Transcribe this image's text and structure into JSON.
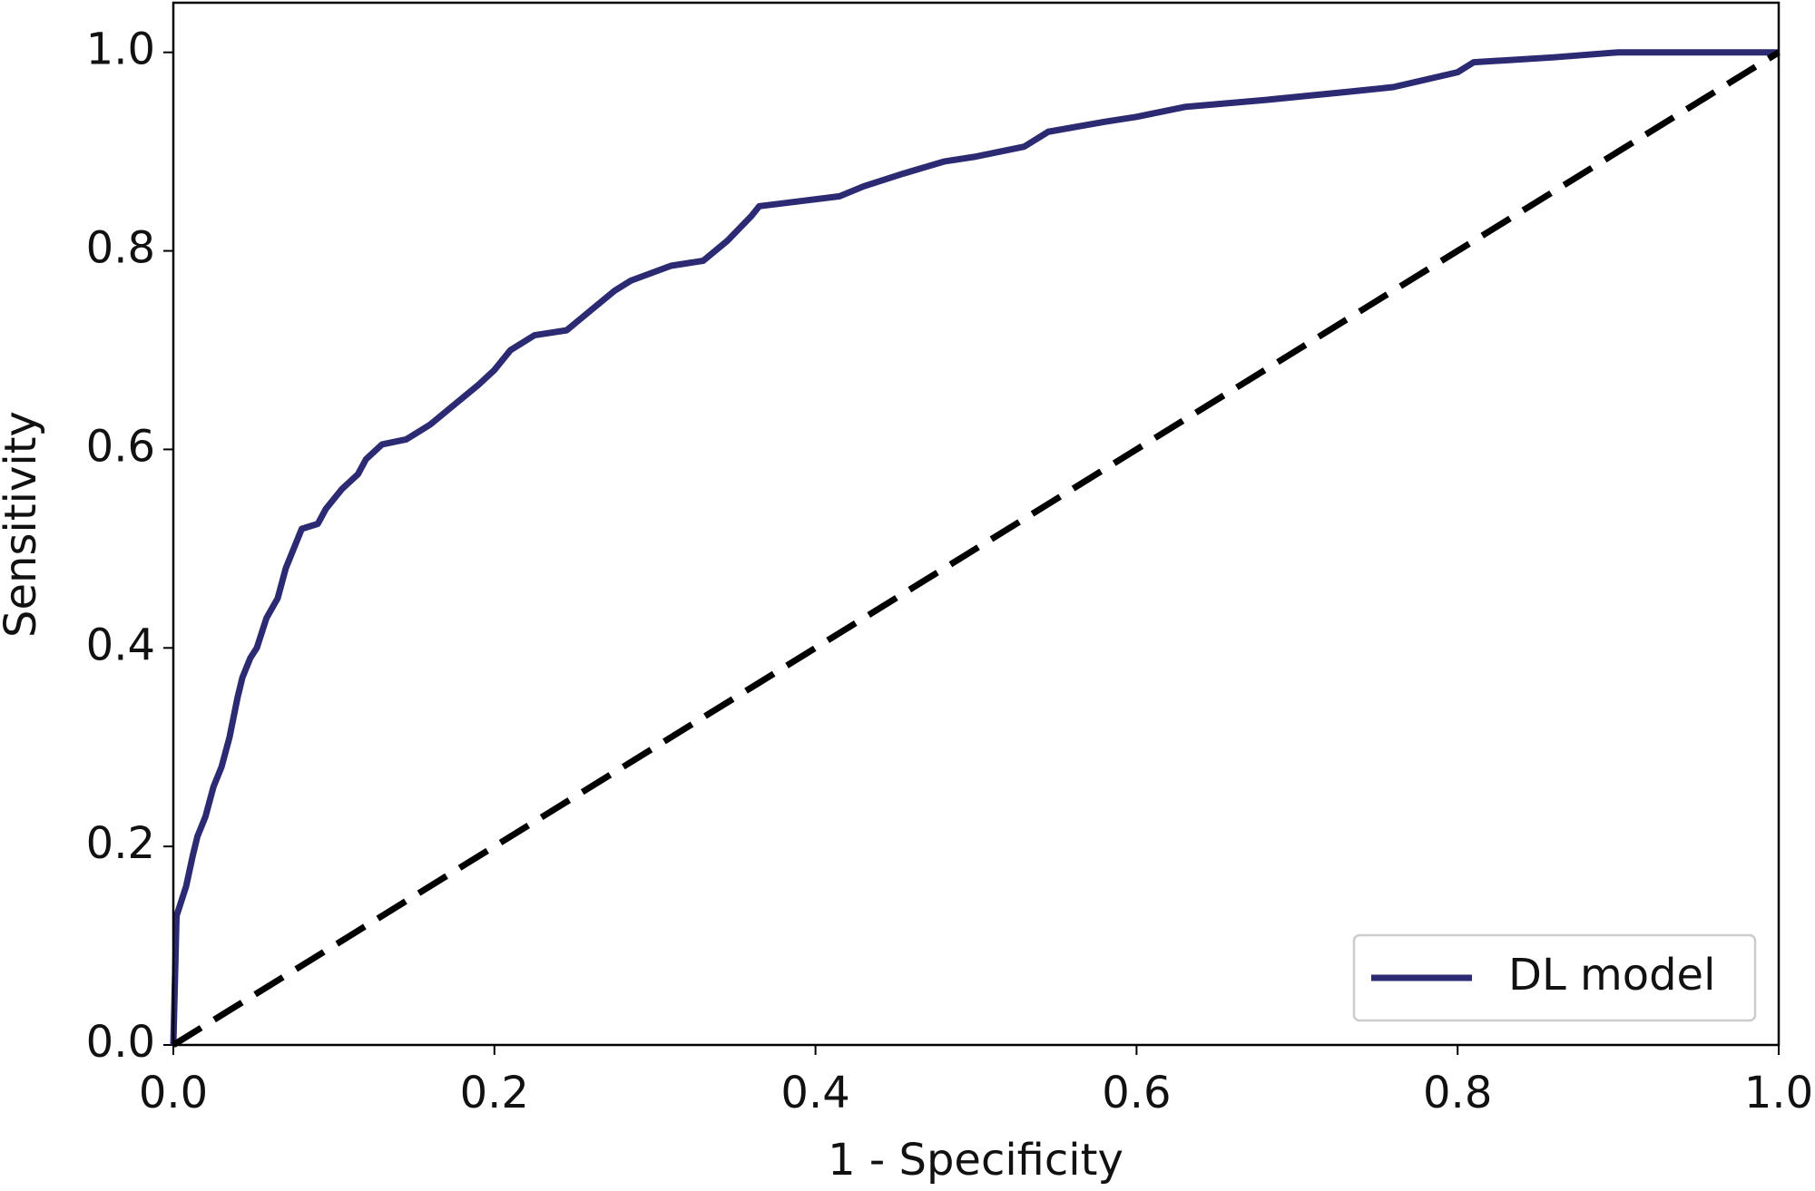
{
  "chart_data": {
    "type": "line",
    "xlabel": "1 - Specificity",
    "ylabel": "Sensitivity",
    "xlim": [
      0,
      1
    ],
    "ylim": [
      0,
      1.05
    ],
    "xticks": [
      {
        "value": 0,
        "label": "0.0"
      },
      0.2,
      0.4,
      0.6,
      0.8,
      {
        "value": 1,
        "label": "1.0"
      }
    ],
    "yticks": [
      {
        "value": 0,
        "label": "0.0"
      },
      0.2,
      0.4,
      0.6,
      0.8,
      {
        "value": 1,
        "label": "1.0"
      }
    ],
    "legend": "lower right",
    "series": [
      {
        "name": "DL model",
        "color": "#2b2a73",
        "style": "solid",
        "x": [
          0,
          0.002,
          0.008,
          0.012,
          0.015,
          0.02,
          0.025,
          0.03,
          0.035,
          0.04,
          0.043,
          0.048,
          0.052,
          0.058,
          0.065,
          0.07,
          0.075,
          0.08,
          0.09,
          0.095,
          0.105,
          0.115,
          0.12,
          0.13,
          0.145,
          0.16,
          0.175,
          0.19,
          0.2,
          0.21,
          0.225,
          0.245,
          0.26,
          0.275,
          0.285,
          0.31,
          0.33,
          0.345,
          0.36,
          0.365,
          0.38,
          0.415,
          0.43,
          0.455,
          0.48,
          0.5,
          0.53,
          0.545,
          0.58,
          0.6,
          0.63,
          0.68,
          0.73,
          0.76,
          0.8,
          0.81,
          0.86,
          0.9,
          1.0
        ],
        "values": [
          0,
          0.13,
          0.16,
          0.19,
          0.21,
          0.23,
          0.26,
          0.28,
          0.31,
          0.35,
          0.37,
          0.39,
          0.4,
          0.43,
          0.45,
          0.48,
          0.5,
          0.52,
          0.525,
          0.54,
          0.56,
          0.575,
          0.59,
          0.605,
          0.61,
          0.625,
          0.645,
          0.665,
          0.68,
          0.7,
          0.715,
          0.72,
          0.74,
          0.76,
          0.77,
          0.785,
          0.79,
          0.81,
          0.835,
          0.845,
          0.848,
          0.855,
          0.865,
          0.878,
          0.89,
          0.895,
          0.905,
          0.92,
          0.93,
          0.935,
          0.945,
          0.952,
          0.96,
          0.965,
          0.98,
          0.99,
          0.995,
          1.0,
          1.0
        ]
      },
      {
        "color": "#000000",
        "style": "dashed",
        "x": [
          0,
          1
        ],
        "values": [
          0,
          1
        ]
      }
    ]
  }
}
